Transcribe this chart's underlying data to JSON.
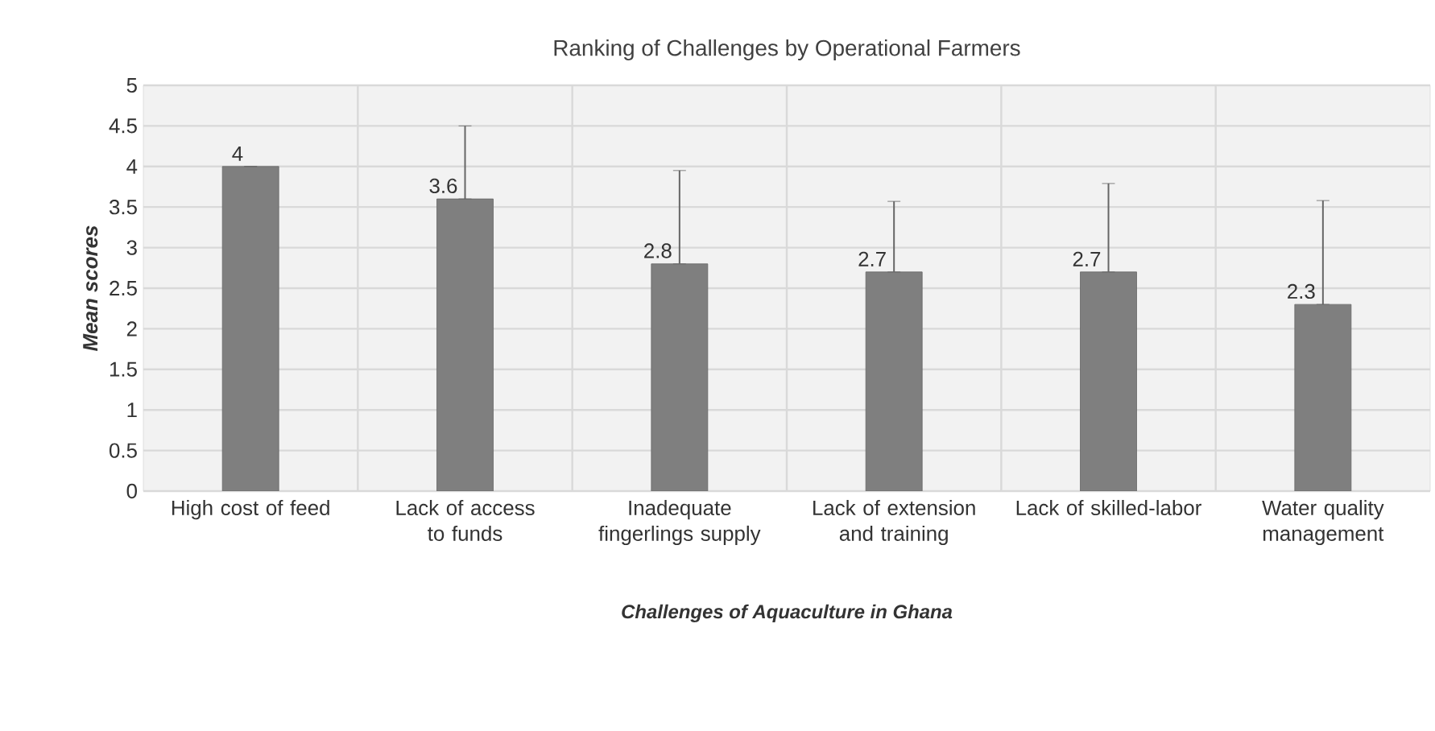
{
  "chart_data": {
    "type": "bar",
    "title": "Ranking of Challenges by Operational Farmers",
    "xlabel": "Challenges of Aquaculture in Ghana",
    "ylabel": "Mean scores",
    "categories": [
      "High cost of feed",
      "Lack of access to funds",
      "Inadequate fingerlings supply",
      "Lack of extension and training",
      "Lack of skilled-labor",
      "Water quality management"
    ],
    "values": [
      4,
      3.6,
      2.8,
      2.7,
      2.7,
      2.3
    ],
    "errors": [
      null,
      [
        3.6,
        4.5
      ],
      [
        2.8,
        3.95
      ],
      [
        2.7,
        3.57
      ],
      [
        2.7,
        3.79
      ],
      [
        2.3,
        3.58
      ]
    ],
    "color": "#7f7f7f",
    "ylim": [
      0,
      5
    ],
    "yticks": [
      0,
      0.5,
      1,
      1.5,
      2,
      2.5,
      3,
      3.5,
      4,
      4.5,
      5
    ],
    "grid": true,
    "data_labels": true
  }
}
